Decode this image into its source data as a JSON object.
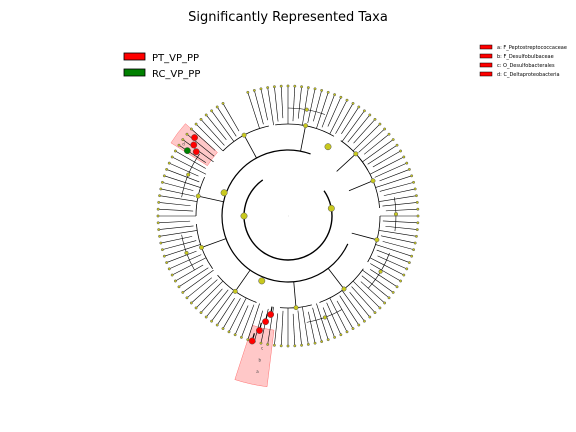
{
  "title": "Significantly Represented Taxa",
  "legend": [
    {
      "label": "PT_VP_PP",
      "color": "#ff0000"
    },
    {
      "label": "RC_VP_PP",
      "color": "#008000"
    }
  ],
  "taxa_key": [
    {
      "text": "a: F_Peptostreptococcaceae",
      "color": "#ff0000"
    },
    {
      "text": "b: F_Desulfobulbaceae",
      "color": "#ff0000"
    },
    {
      "text": "c: O_Desulfobacterales",
      "color": "#ff0000"
    },
    {
      "text": "d: C_Deltaproteobacteria",
      "color": "#ff0000"
    }
  ],
  "highlight_labels": [
    "a",
    "b",
    "c",
    "d"
  ],
  "colors": {
    "node_default": "#c8c81e",
    "node_enriched_pt": "#ff0000",
    "node_enriched_rc": "#008000",
    "highlight_fill": "#ff9a9a",
    "branch": "#000000"
  }
}
